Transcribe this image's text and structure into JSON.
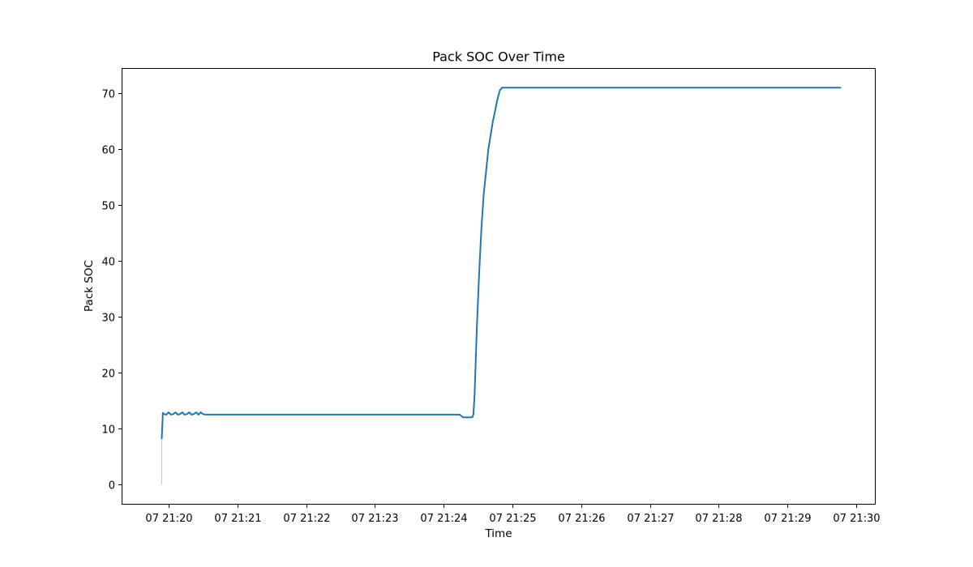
{
  "chart_data": {
    "type": "line",
    "title": "Pack SOC Over Time",
    "xlabel": "Time",
    "ylabel": "Pack SOC",
    "ylim": [
      -3.6,
      74.5
    ],
    "xlim": [
      "21:19:19",
      "21:30:17"
    ],
    "grid": false,
    "legend": "none",
    "line_color": "#1f77b4",
    "yticks": [
      0,
      10,
      20,
      30,
      40,
      50,
      60,
      70
    ],
    "xticks": [
      {
        "t": "21:20:00",
        "label": "07 21:20"
      },
      {
        "t": "21:21:00",
        "label": "07 21:21"
      },
      {
        "t": "21:22:00",
        "label": "07 21:22"
      },
      {
        "t": "21:23:00",
        "label": "07 21:23"
      },
      {
        "t": "21:24:00",
        "label": "07 21:24"
      },
      {
        "t": "21:25:00",
        "label": "07 21:25"
      },
      {
        "t": "21:26:00",
        "label": "07 21:26"
      },
      {
        "t": "21:27:00",
        "label": "07 21:27"
      },
      {
        "t": "21:28:00",
        "label": "07 21:28"
      },
      {
        "t": "21:29:00",
        "label": "07 21:29"
      },
      {
        "t": "21:30:00",
        "label": "07 21:30"
      }
    ],
    "initial_spike": {
      "x": "21:19:54",
      "values": [
        0,
        8.3
      ]
    },
    "series": [
      {
        "x": [
          "21:19:54",
          "21:19:55",
          "21:19:56",
          "21:19:58",
          "21:20:00",
          "21:20:02",
          "21:20:04",
          "21:20:06",
          "21:20:08",
          "21:20:10",
          "21:20:12",
          "21:20:14",
          "21:20:16",
          "21:20:18",
          "21:20:20",
          "21:20:22",
          "21:20:24",
          "21:20:26",
          "21:20:28",
          "21:20:30",
          "21:20:32",
          "21:21:00",
          "21:22:00",
          "21:23:00",
          "21:24:00",
          "21:24:14",
          "21:24:17",
          "21:24:20",
          "21:24:25",
          "21:24:26",
          "21:24:27",
          "21:24:28",
          "21:24:29",
          "21:24:31",
          "21:24:33",
          "21:24:35",
          "21:24:37",
          "21:24:39",
          "21:24:41",
          "21:24:43",
          "21:24:45",
          "21:24:47",
          "21:24:49",
          "21:24:51",
          "21:24:53",
          "21:24:55",
          "21:24:57",
          "21:24:59",
          "21:25:01",
          "21:25:30",
          "21:26:00",
          "21:27:00",
          "21:28:00",
          "21:29:00",
          "21:29:46"
        ],
        "values": [
          8.3,
          12.8,
          12.6,
          12.5,
          12.9,
          12.5,
          12.6,
          12.9,
          12.5,
          12.6,
          12.9,
          12.5,
          12.6,
          12.9,
          12.5,
          12.6,
          12.9,
          12.5,
          12.9,
          12.6,
          12.5,
          12.5,
          12.5,
          12.5,
          12.5,
          12.5,
          12.0,
          12.0,
          12.0,
          12.6,
          16.0,
          22.0,
          28.0,
          38.0,
          46.0,
          52.0,
          56.0,
          60.0,
          62.5,
          65.0,
          67.0,
          69.0,
          70.5,
          71.0,
          71.0,
          71.0,
          71.0,
          71.0,
          71.0,
          71.0,
          71.0,
          71.0,
          71.0,
          71.0,
          71.0
        ]
      }
    ]
  }
}
